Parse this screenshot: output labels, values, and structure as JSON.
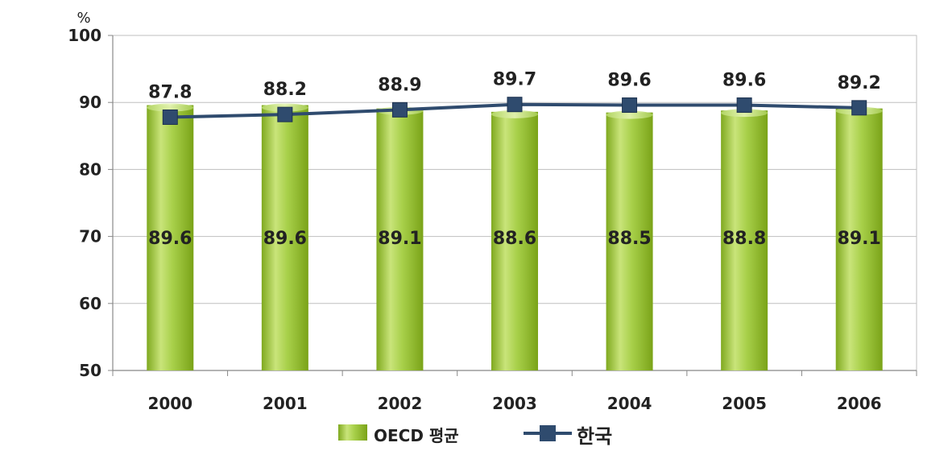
{
  "chart_data": {
    "type": "bar",
    "unit": "%",
    "categories": [
      "2000",
      "2001",
      "2002",
      "2003",
      "2004",
      "2005",
      "2006"
    ],
    "ylim": [
      50,
      100
    ],
    "yticks": [
      50,
      60,
      70,
      80,
      90,
      100
    ],
    "grid": true,
    "legend_position": "bottom",
    "series": [
      {
        "name": "OECD 평균",
        "kind": "bar",
        "color": "#9BC434",
        "values": [
          89.6,
          89.6,
          89.1,
          88.6,
          88.5,
          88.8,
          89.1
        ]
      },
      {
        "name": "한국",
        "kind": "line",
        "color": "#2F4B6E",
        "values": [
          87.8,
          88.2,
          88.9,
          89.7,
          89.6,
          89.6,
          89.2
        ]
      }
    ]
  }
}
